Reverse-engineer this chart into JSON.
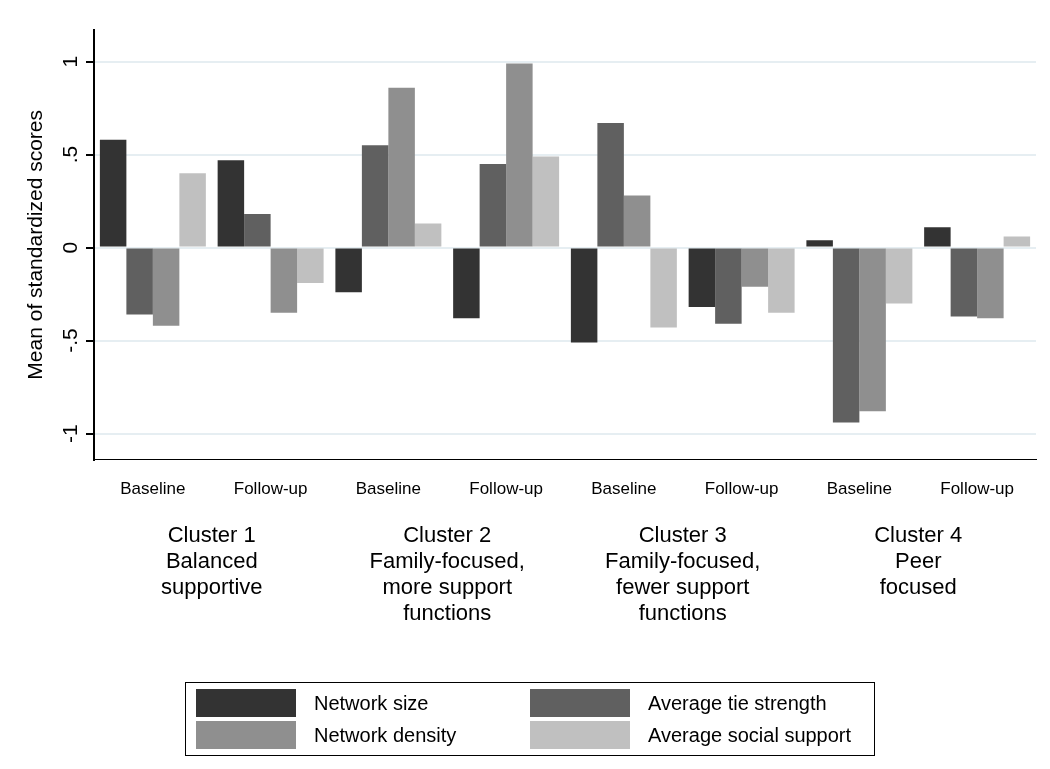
{
  "chart_data": {
    "type": "bar",
    "ylabel": "Mean of standardized scores",
    "categories": [
      "Baseline",
      "Follow-up",
      "Baseline",
      "Follow-up",
      "Baseline",
      "Follow-up",
      "Baseline",
      "Follow-up"
    ],
    "annotations": [
      "Cluster 1\nBalanced\nsupportive",
      "Cluster 2\nFamily-focused,\nmore support\nfunctions",
      "Cluster 3\nFamily-focused,\nfewer support\nfunctions",
      "Cluster 4\nPeer\nfocused"
    ],
    "series": [
      {
        "name": "Network size",
        "color": "#333333",
        "values": [
          0.58,
          0.47,
          -0.24,
          -0.38,
          -0.51,
          -0.32,
          0.04,
          0.11
        ]
      },
      {
        "name": "Average tie strength",
        "color": "#606060",
        "values": [
          -0.36,
          0.18,
          0.55,
          0.45,
          0.67,
          -0.41,
          -0.94,
          -0.37
        ]
      },
      {
        "name": "Network density",
        "color": "#8f8f8f",
        "values": [
          -0.42,
          -0.35,
          0.86,
          0.99,
          0.28,
          -0.21,
          -0.88,
          -0.38
        ]
      },
      {
        "name": "Average social support",
        "color": "#c0c0c0",
        "values": [
          0.4,
          -0.19,
          0.13,
          0.49,
          -0.43,
          -0.35,
          -0.3,
          0.06
        ]
      }
    ],
    "ylim": [
      -1.14,
      1.17
    ],
    "yticks": [
      {
        "value": -1,
        "label": "-1"
      },
      {
        "value": -0.5,
        "label": "-.5"
      },
      0,
      {
        "value": 0.5,
        "label": ".5"
      },
      1
    ],
    "grid": "y",
    "legend": "bottom"
  }
}
